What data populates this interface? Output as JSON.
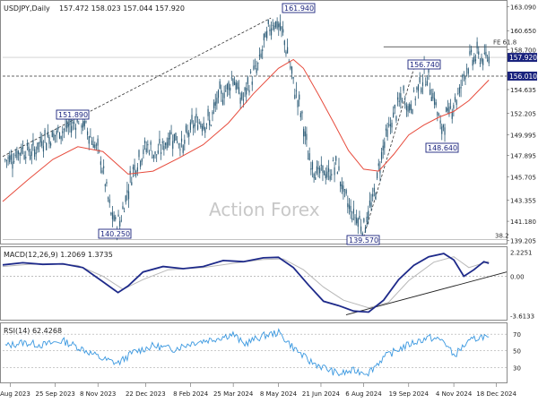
{
  "chart_data": {
    "type": "line",
    "watermark": "Action Forex",
    "price_panel": {
      "title": "USDJPY,Daily",
      "ohlc": "157.472 158.023 157.044 157.920",
      "price_axis_ticks": [
        "163.090",
        "160.650",
        "158.700",
        "156.010",
        "154.635",
        "152.205",
        "149.995",
        "147.895",
        "145.705",
        "143.355",
        "141.180",
        "139.205"
      ],
      "last_price_label": "157.920",
      "level_label": "156.010",
      "fe_label": "FE 61.8",
      "retrace_label": "38.2",
      "annotations": [
        {
          "label": "161.940",
          "date_index": 0.535,
          "value": 161.94
        },
        {
          "label": "151.890",
          "date_index": 0.145,
          "value": 151.89
        },
        {
          "label": "140.250",
          "date_index": 0.225,
          "value": 140.25
        },
        {
          "label": "156.740",
          "date_index": 0.79,
          "value": 156.74
        },
        {
          "label": "148.640",
          "date_index": 0.8,
          "value": 148.64
        },
        {
          "label": "139.570",
          "date_index": 0.715,
          "value": 139.57
        }
      ],
      "ylim": [
        138.9,
        163.6
      ],
      "close_series": [
        [
          0,
          147.3
        ],
        [
          0.02,
          147.8
        ],
        [
          0.04,
          148.6
        ],
        [
          0.06,
          148.2
        ],
        [
          0.08,
          149.6
        ],
        [
          0.1,
          149.9
        ],
        [
          0.12,
          150.5
        ],
        [
          0.14,
          151.1
        ],
        [
          0.15,
          151.7
        ],
        [
          0.165,
          150.8
        ],
        [
          0.18,
          149.4
        ],
        [
          0.195,
          147.7
        ],
        [
          0.205,
          145.0
        ],
        [
          0.215,
          142.0
        ],
        [
          0.225,
          141.0
        ],
        [
          0.235,
          141.3
        ],
        [
          0.245,
          143.5
        ],
        [
          0.26,
          146.5
        ],
        [
          0.275,
          148.0
        ],
        [
          0.29,
          148.9
        ],
        [
          0.305,
          147.9
        ],
        [
          0.32,
          148.8
        ],
        [
          0.335,
          150.1
        ],
        [
          0.35,
          149.6
        ],
        [
          0.36,
          148.6
        ],
        [
          0.37,
          150.3
        ],
        [
          0.385,
          151.2
        ],
        [
          0.4,
          151.5
        ],
        [
          0.415,
          151.3
        ],
        [
          0.43,
          153.8
        ],
        [
          0.445,
          154.5
        ],
        [
          0.46,
          156.1
        ],
        [
          0.47,
          154.2
        ],
        [
          0.48,
          153.6
        ],
        [
          0.495,
          155.8
        ],
        [
          0.51,
          157.0
        ],
        [
          0.52,
          159.1
        ],
        [
          0.53,
          160.6
        ],
        [
          0.54,
          161.7
        ],
        [
          0.55,
          161.1
        ],
        [
          0.56,
          160.1
        ],
        [
          0.57,
          157.9
        ],
        [
          0.58,
          155.2
        ],
        [
          0.59,
          153.4
        ],
        [
          0.6,
          151.0
        ],
        [
          0.61,
          147.7
        ],
        [
          0.62,
          146.8
        ],
        [
          0.63,
          145.9
        ],
        [
          0.64,
          146.4
        ],
        [
          0.65,
          145.7
        ],
        [
          0.66,
          146.9
        ],
        [
          0.67,
          146.5
        ],
        [
          0.68,
          144.0
        ],
        [
          0.69,
          142.8
        ],
        [
          0.7,
          141.8
        ],
        [
          0.71,
          141.4
        ],
        [
          0.72,
          140.6
        ],
        [
          0.73,
          142.1
        ],
        [
          0.74,
          143.5
        ],
        [
          0.75,
          146.4
        ],
        [
          0.76,
          149.1
        ],
        [
          0.77,
          150.4
        ],
        [
          0.78,
          152.0
        ],
        [
          0.79,
          153.0
        ],
        [
          0.8,
          154.2
        ],
        [
          0.81,
          152.6
        ],
        [
          0.82,
          153.7
        ],
        [
          0.83,
          154.9
        ],
        [
          0.84,
          156.1
        ],
        [
          0.85,
          155.6
        ],
        [
          0.86,
          153.9
        ],
        [
          0.87,
          151.8
        ],
        [
          0.875,
          150.0
        ],
        [
          0.88,
          151.4
        ],
        [
          0.89,
          152.1
        ],
        [
          0.9,
          153.5
        ],
        [
          0.91,
          154.1
        ],
        [
          0.92,
          156.2
        ],
        [
          0.93,
          157.5
        ],
        [
          0.94,
          157.9
        ],
        [
          0.95,
          158.1
        ],
        [
          0.96,
          157.6
        ],
        [
          0.97,
          157.9
        ]
      ],
      "ma_series": [
        [
          0,
          143.2
        ],
        [
          0.05,
          145.4
        ],
        [
          0.1,
          147.5
        ],
        [
          0.15,
          148.8
        ],
        [
          0.2,
          148.3
        ],
        [
          0.25,
          146.0
        ],
        [
          0.3,
          146.3
        ],
        [
          0.35,
          147.6
        ],
        [
          0.4,
          149.0
        ],
        [
          0.45,
          151.2
        ],
        [
          0.5,
          154.2
        ],
        [
          0.55,
          156.8
        ],
        [
          0.58,
          157.7
        ],
        [
          0.6,
          156.8
        ],
        [
          0.63,
          154.1
        ],
        [
          0.66,
          151.3
        ],
        [
          0.69,
          148.4
        ],
        [
          0.72,
          146.5
        ],
        [
          0.75,
          146.3
        ],
        [
          0.78,
          148.0
        ],
        [
          0.81,
          150.0
        ],
        [
          0.84,
          151.0
        ],
        [
          0.87,
          151.8
        ],
        [
          0.9,
          152.4
        ],
        [
          0.93,
          153.5
        ],
        [
          0.97,
          155.6
        ]
      ]
    },
    "macd_panel": {
      "title": "MACD(12,26,9) 1.2069 1.3735",
      "ticks": [
        "2.2251",
        "0.00",
        "-3.6133"
      ],
      "ylim": [
        -4.0,
        2.6
      ],
      "macd_series": [
        [
          0,
          1.05
        ],
        [
          0.04,
          1.25
        ],
        [
          0.08,
          1.1
        ],
        [
          0.12,
          1.15
        ],
        [
          0.16,
          0.8
        ],
        [
          0.2,
          -0.5
        ],
        [
          0.23,
          -1.5
        ],
        [
          0.25,
          -0.9
        ],
        [
          0.28,
          0.4
        ],
        [
          0.32,
          0.9
        ],
        [
          0.36,
          0.7
        ],
        [
          0.4,
          0.9
        ],
        [
          0.44,
          1.45
        ],
        [
          0.48,
          1.35
        ],
        [
          0.52,
          1.7
        ],
        [
          0.55,
          1.75
        ],
        [
          0.58,
          0.8
        ],
        [
          0.61,
          -0.8
        ],
        [
          0.64,
          -2.3
        ],
        [
          0.67,
          -2.7
        ],
        [
          0.7,
          -3.2
        ],
        [
          0.73,
          -3.3
        ],
        [
          0.76,
          -2.2
        ],
        [
          0.79,
          -0.3
        ],
        [
          0.82,
          1.0
        ],
        [
          0.85,
          1.8
        ],
        [
          0.88,
          2.1
        ],
        [
          0.9,
          1.5
        ],
        [
          0.92,
          0.0
        ],
        [
          0.94,
          0.6
        ],
        [
          0.96,
          1.35
        ],
        [
          0.97,
          1.2
        ]
      ],
      "signal_series": [
        [
          0,
          0.9
        ],
        [
          0.05,
          1.1
        ],
        [
          0.1,
          1.15
        ],
        [
          0.15,
          1.0
        ],
        [
          0.2,
          0.0
        ],
        [
          0.24,
          -1.2
        ],
        [
          0.28,
          -0.3
        ],
        [
          0.33,
          0.6
        ],
        [
          0.4,
          0.8
        ],
        [
          0.46,
          1.2
        ],
        [
          0.52,
          1.55
        ],
        [
          0.56,
          1.6
        ],
        [
          0.6,
          0.6
        ],
        [
          0.64,
          -1.0
        ],
        [
          0.68,
          -2.2
        ],
        [
          0.73,
          -2.9
        ],
        [
          0.77,
          -2.4
        ],
        [
          0.81,
          -0.4
        ],
        [
          0.86,
          1.3
        ],
        [
          0.9,
          1.8
        ],
        [
          0.93,
          0.8
        ],
        [
          0.97,
          1.37
        ]
      ]
    },
    "rsi_panel": {
      "title": "RSI(14) 62.4268",
      "ticks": [
        "70",
        "50",
        "30"
      ],
      "ylim": [
        12,
        82
      ],
      "rsi_series": [
        [
          0,
          55
        ],
        [
          0.04,
          60
        ],
        [
          0.08,
          57
        ],
        [
          0.12,
          62
        ],
        [
          0.16,
          52
        ],
        [
          0.2,
          40
        ],
        [
          0.23,
          35
        ],
        [
          0.26,
          48
        ],
        [
          0.3,
          56
        ],
        [
          0.34,
          52
        ],
        [
          0.38,
          60
        ],
        [
          0.42,
          64
        ],
        [
          0.46,
          70
        ],
        [
          0.48,
          58
        ],
        [
          0.52,
          68
        ],
        [
          0.55,
          72
        ],
        [
          0.58,
          54
        ],
        [
          0.61,
          38
        ],
        [
          0.64,
          30
        ],
        [
          0.67,
          22
        ],
        [
          0.7,
          26
        ],
        [
          0.73,
          24
        ],
        [
          0.76,
          42
        ],
        [
          0.79,
          52
        ],
        [
          0.82,
          60
        ],
        [
          0.85,
          66
        ],
        [
          0.88,
          62
        ],
        [
          0.9,
          44
        ],
        [
          0.92,
          56
        ],
        [
          0.94,
          64
        ],
        [
          0.96,
          68
        ],
        [
          0.97,
          62.43
        ]
      ]
    },
    "x_ticks": [
      "10 Aug 2023",
      "25 Sep 2023",
      "8 Nov 2023",
      "22 Dec 2023",
      "8 Feb 2024",
      "25 Mar 2024",
      "8 May 2024",
      "21 Jun 2024",
      "6 Aug 2024",
      "19 Sep 2024",
      "4 Nov 2024",
      "18 Dec 2024"
    ]
  },
  "colors": {
    "candle": "#2e5d78",
    "ma": "#e74b3c",
    "macd": "#1e2a8a",
    "signal": "#b8b8b8",
    "rsi": "#3a98e0",
    "box_border": "#1a237e",
    "last_price_bg": "#1a237e",
    "level_bg": "#1a237e"
  }
}
